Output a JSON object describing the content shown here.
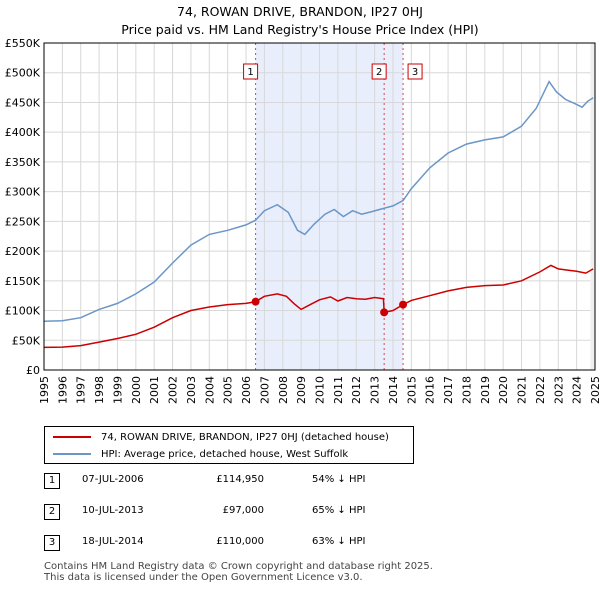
{
  "title_line1": "74, ROWAN DRIVE, BRANDON, IP27 0HJ",
  "title_line2": "Price paid vs. HM Land Registry's House Price Index (HPI)",
  "colors": {
    "property": "#cc0000",
    "hpi": "#6a96c8",
    "shade": "#e8eefb",
    "marker_line": "#cc0000"
  },
  "chart_data": {
    "type": "line",
    "title": "74, ROWAN DRIVE, BRANDON, IP27 0HJ — Price paid vs. HM Land Registry's House Price Index (HPI)",
    "xlabel": "",
    "ylabel": "",
    "xlim": [
      1995,
      2025
    ],
    "ylim": [
      0,
      550000
    ],
    "x_ticks": [
      "1995",
      "1996",
      "1997",
      "1998",
      "1999",
      "2000",
      "2001",
      "2002",
      "2003",
      "2004",
      "2005",
      "2006",
      "2007",
      "2008",
      "2009",
      "2010",
      "2011",
      "2012",
      "2013",
      "2014",
      "2015",
      "2016",
      "2017",
      "2018",
      "2019",
      "2020",
      "2021",
      "2022",
      "2023",
      "2024",
      "2025"
    ],
    "y_ticks": [
      {
        "value": 0,
        "label": "£0"
      },
      {
        "value": 50000,
        "label": "£50K"
      },
      {
        "value": 100000,
        "label": "£100K"
      },
      {
        "value": 150000,
        "label": "£150K"
      },
      {
        "value": 200000,
        "label": "£200K"
      },
      {
        "value": 250000,
        "label": "£250K"
      },
      {
        "value": 300000,
        "label": "£300K"
      },
      {
        "value": 350000,
        "label": "£350K"
      },
      {
        "value": 400000,
        "label": "£400K"
      },
      {
        "value": 450000,
        "label": "£450K"
      },
      {
        "value": 500000,
        "label": "£500K"
      },
      {
        "value": 550000,
        "label": "£550K"
      }
    ],
    "grid": true,
    "shaded_range": [
      2006.52,
      2014.55
    ],
    "series": [
      {
        "name": "74, ROWAN DRIVE, BRANDON, IP27 0HJ (detached house)",
        "points": [
          [
            1995.0,
            38000
          ],
          [
            1996.0,
            38500
          ],
          [
            1997.0,
            41000
          ],
          [
            1998.0,
            47000
          ],
          [
            1999.0,
            53000
          ],
          [
            2000.0,
            60000
          ],
          [
            2001.0,
            72000
          ],
          [
            2002.0,
            88000
          ],
          [
            2003.0,
            100000
          ],
          [
            2004.0,
            106000
          ],
          [
            2005.0,
            110000
          ],
          [
            2006.0,
            112000
          ],
          [
            2006.52,
            114950
          ],
          [
            2007.0,
            124000
          ],
          [
            2007.7,
            128000
          ],
          [
            2008.2,
            124000
          ],
          [
            2008.6,
            112000
          ],
          [
            2009.0,
            102000
          ],
          [
            2009.5,
            110000
          ],
          [
            2010.0,
            118000
          ],
          [
            2010.6,
            123000
          ],
          [
            2011.0,
            116000
          ],
          [
            2011.5,
            122000
          ],
          [
            2012.0,
            120000
          ],
          [
            2012.5,
            119000
          ],
          [
            2013.0,
            122000
          ],
          [
            2013.48,
            120000
          ],
          [
            2013.52,
            97000
          ],
          [
            2014.0,
            100000
          ],
          [
            2014.55,
            110000
          ],
          [
            2015.0,
            117000
          ],
          [
            2016.0,
            125000
          ],
          [
            2017.0,
            133000
          ],
          [
            2018.0,
            139000
          ],
          [
            2019.0,
            142000
          ],
          [
            2020.0,
            143000
          ],
          [
            2021.0,
            150000
          ],
          [
            2022.0,
            165000
          ],
          [
            2022.6,
            176000
          ],
          [
            2023.0,
            170000
          ],
          [
            2023.5,
            168000
          ],
          [
            2024.0,
            166000
          ],
          [
            2024.5,
            163000
          ],
          [
            2024.9,
            170000
          ]
        ]
      },
      {
        "name": "HPI: Average price, detached house, West Suffolk",
        "points": [
          [
            1995.0,
            82000
          ],
          [
            1996.0,
            83000
          ],
          [
            1997.0,
            88000
          ],
          [
            1998.0,
            102000
          ],
          [
            1999.0,
            112000
          ],
          [
            2000.0,
            128000
          ],
          [
            2001.0,
            148000
          ],
          [
            2002.0,
            180000
          ],
          [
            2003.0,
            210000
          ],
          [
            2004.0,
            228000
          ],
          [
            2005.0,
            235000
          ],
          [
            2006.0,
            244000
          ],
          [
            2006.52,
            252000
          ],
          [
            2007.0,
            268000
          ],
          [
            2007.7,
            278000
          ],
          [
            2008.3,
            265000
          ],
          [
            2008.8,
            235000
          ],
          [
            2009.2,
            228000
          ],
          [
            2009.7,
            245000
          ],
          [
            2010.3,
            262000
          ],
          [
            2010.8,
            270000
          ],
          [
            2011.3,
            258000
          ],
          [
            2011.8,
            268000
          ],
          [
            2012.3,
            262000
          ],
          [
            2012.8,
            266000
          ],
          [
            2013.5,
            272000
          ],
          [
            2014.0,
            276000
          ],
          [
            2014.55,
            285000
          ],
          [
            2015.0,
            305000
          ],
          [
            2016.0,
            340000
          ],
          [
            2017.0,
            365000
          ],
          [
            2018.0,
            380000
          ],
          [
            2019.0,
            387000
          ],
          [
            2020.0,
            392000
          ],
          [
            2021.0,
            410000
          ],
          [
            2021.8,
            440000
          ],
          [
            2022.5,
            485000
          ],
          [
            2022.9,
            468000
          ],
          [
            2023.4,
            455000
          ],
          [
            2023.9,
            448000
          ],
          [
            2024.3,
            442000
          ],
          [
            2024.6,
            452000
          ],
          [
            2024.9,
            458000
          ]
        ]
      }
    ],
    "sale_markers": [
      {
        "label": "1",
        "x": 2006.52,
        "value": 114950
      },
      {
        "label": "2",
        "x": 2013.52,
        "value": 97000
      },
      {
        "label": "3",
        "x": 2014.55,
        "value": 110000
      }
    ]
  },
  "legend": {
    "property_label": "74, ROWAN DRIVE, BRANDON, IP27 0HJ (detached house)",
    "hpi_label": "HPI: Average price, detached house, West Suffolk"
  },
  "sales": [
    {
      "num": "1",
      "date": "07-JUL-2006",
      "price": "£114,950",
      "hpi": "54% ↓ HPI"
    },
    {
      "num": "2",
      "date": "10-JUL-2013",
      "price": "£97,000",
      "hpi": "65% ↓ HPI"
    },
    {
      "num": "3",
      "date": "18-JUL-2014",
      "price": "£110,000",
      "hpi": "63% ↓ HPI"
    }
  ],
  "footer": {
    "line1": "Contains HM Land Registry data © Crown copyright and database right 2025.",
    "line2": "This data is licensed under the Open Government Licence v3.0."
  }
}
